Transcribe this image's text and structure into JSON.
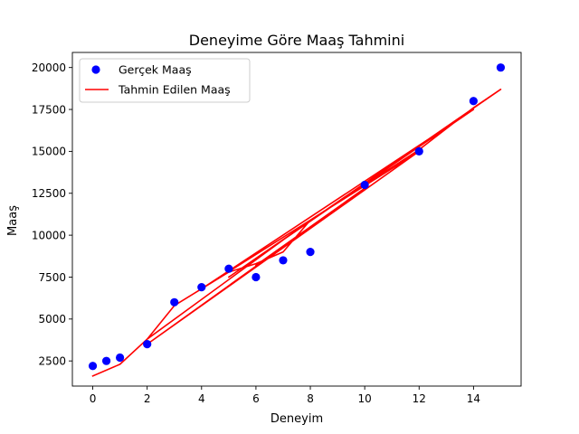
{
  "chart_data": {
    "type": "scatter",
    "title": "Deneyime Göre Maaş Tahmini",
    "xlabel": "Deneyim",
    "ylabel": "Maaş",
    "xlim": [
      -0.75,
      15.75
    ],
    "ylim": [
      1000,
      20900
    ],
    "xticks": [
      0,
      2,
      4,
      6,
      8,
      10,
      12,
      14
    ],
    "yticks": [
      2500,
      5000,
      7500,
      10000,
      12500,
      15000,
      17500,
      20000
    ],
    "grid": false,
    "legend_position": "top-left",
    "series": [
      {
        "name": "Gerçek Maaş",
        "kind": "scatter",
        "color": "#0000ff",
        "points": [
          [
            0,
            2200
          ],
          [
            0.5,
            2500
          ],
          [
            1,
            2700
          ],
          [
            2,
            3500
          ],
          [
            3,
            6000
          ],
          [
            4,
            6900
          ],
          [
            5,
            8000
          ],
          [
            6,
            7500
          ],
          [
            7,
            8500
          ],
          [
            8,
            9000
          ],
          [
            10,
            13000
          ],
          [
            12,
            15000
          ],
          [
            14,
            18000
          ],
          [
            15,
            20000
          ]
        ]
      },
      {
        "name": "Tahmin Edilen Maaş",
        "kind": "line",
        "color": "#ff0000",
        "points": [
          [
            0,
            1600
          ],
          [
            1,
            2300
          ],
          [
            2,
            3800
          ],
          [
            3,
            5800
          ],
          [
            4,
            6800
          ],
          [
            5,
            7800
          ],
          [
            6,
            8300
          ],
          [
            7,
            9000
          ],
          [
            8,
            10900
          ],
          [
            2,
            3800
          ],
          [
            8,
            10900
          ],
          [
            10,
            13000
          ],
          [
            12,
            15100
          ],
          [
            14,
            17600
          ],
          [
            15,
            18700
          ],
          [
            5,
            7500
          ],
          [
            14,
            17500
          ],
          [
            4,
            6800
          ],
          [
            12,
            15000
          ],
          [
            2,
            3500
          ],
          [
            10,
            12800
          ],
          [
            6,
            8200
          ]
        ]
      }
    ]
  }
}
